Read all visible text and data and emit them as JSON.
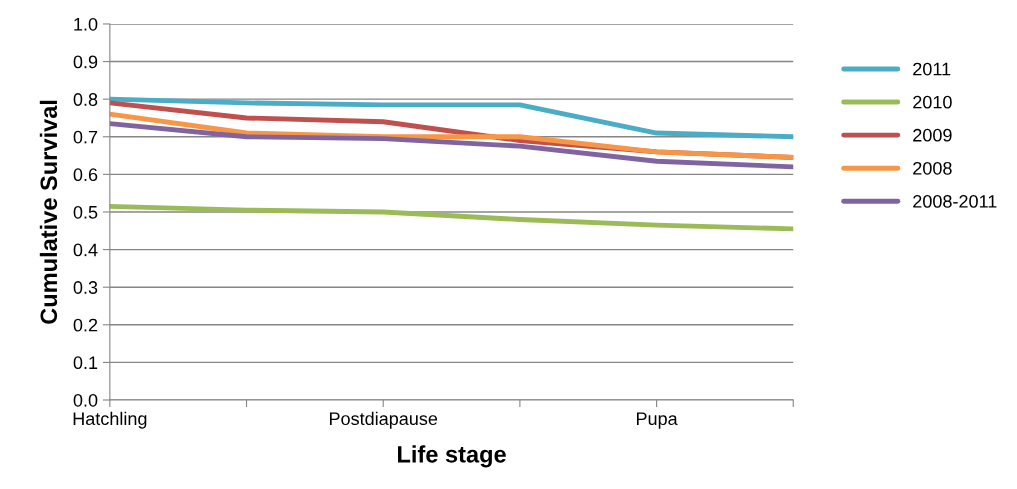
{
  "chart_data": {
    "type": "line",
    "xlabel": "Life stage",
    "ylabel": "Cumulative Survival",
    "categories": [
      "Hatchling",
      null,
      "Postdiapause",
      null,
      "Pupa",
      null
    ],
    "series": [
      {
        "name": "2011",
        "color": "#4bacc6",
        "values": [
          0.8,
          0.79,
          0.785,
          0.785,
          0.71,
          0.7
        ]
      },
      {
        "name": "2010",
        "color": "#9bbb59",
        "values": [
          0.515,
          0.505,
          0.5,
          0.48,
          0.465,
          0.455
        ]
      },
      {
        "name": "2009",
        "color": "#c0504d",
        "values": [
          0.79,
          0.75,
          0.74,
          0.69,
          0.66,
          0.645
        ]
      },
      {
        "name": "2008",
        "color": "#f79646",
        "values": [
          0.76,
          0.71,
          0.7,
          0.7,
          0.66,
          0.645
        ]
      },
      {
        "name": "2008-2011",
        "color": "#8064a2",
        "values": [
          0.735,
          0.7,
          0.695,
          0.675,
          0.635,
          0.62
        ]
      }
    ],
    "ylim": [
      0,
      1.0
    ],
    "yticks": [
      {
        "value": 0,
        "label": "0.0"
      },
      {
        "value": 0.1,
        "label": "0.1"
      },
      {
        "value": 0.2,
        "label": "0.2"
      },
      {
        "value": 0.3,
        "label": "0.3"
      },
      {
        "value": 0.4,
        "label": "0.4"
      },
      {
        "value": 0.5,
        "label": "0.5"
      },
      {
        "value": 0.6,
        "label": "0.6"
      },
      {
        "value": 0.7,
        "label": "0.7"
      },
      {
        "value": 0.8,
        "label": "0.8"
      },
      {
        "value": 0.9,
        "label": "0.9"
      },
      {
        "value": 1.0,
        "label": "1.0"
      }
    ],
    "grid": "y",
    "legend": "right",
    "marker": "none",
    "line_style": "solid"
  }
}
